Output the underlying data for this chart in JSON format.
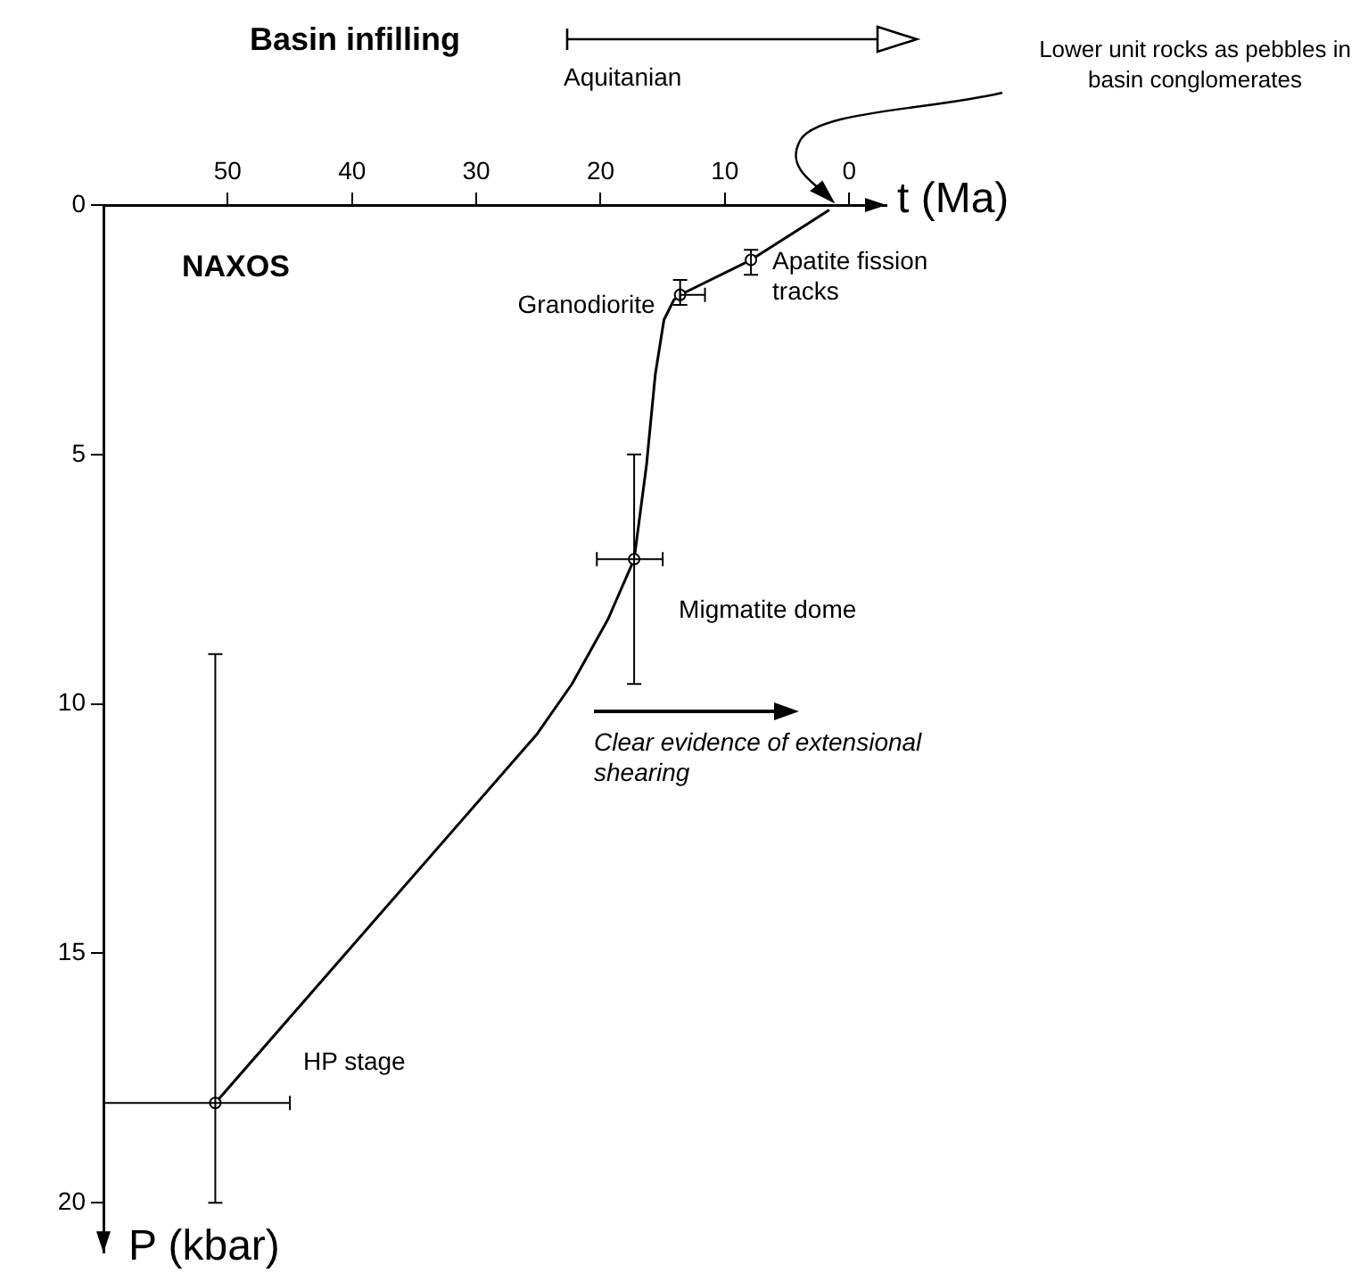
{
  "chart_data": {
    "type": "line",
    "xlabel": "t (Ma)",
    "ylabel": "P (kbar)",
    "xlim": [
      60,
      -3
    ],
    "ylim": [
      21,
      0
    ],
    "xticks": [
      50,
      40,
      30,
      20,
      10,
      0
    ],
    "yticks": [
      0,
      5,
      10,
      15,
      20
    ],
    "grid": false,
    "legend": false,
    "series": [
      {
        "color": "#000000",
        "marker": "none",
        "x": [
          51,
          25.1,
          22.3,
          19.4,
          17.3,
          16.3,
          15.6,
          14.9,
          14.1,
          13.6,
          7.9,
          1.6
        ],
        "values": [
          18,
          10.6,
          9.6,
          8.3,
          7.1,
          5.2,
          3.4,
          2.3,
          1.9,
          1.8,
          1.1,
          0.1
        ]
      },
      {
        "type": "scatter",
        "color": "#000000",
        "marker": "circle",
        "x": [
          51,
          17.3,
          13.6,
          7.9
        ],
        "values": [
          18,
          7.1,
          1.8,
          1.1
        ],
        "errors": [
          [
            9,
            20
          ],
          [
            5,
            9.6
          ],
          [
            1.5,
            2
          ],
          [
            0.9,
            1.4
          ]
        ],
        "xerrors": [
          [
            45,
            60
          ],
          [
            15,
            20.3
          ],
          [
            11.6,
            13.6
          ],
          null
        ]
      }
    ],
    "annotations": [
      "Basin infilling",
      "Aquitanian",
      "Lower unit rocks as pebbles in basin conglomerates",
      "NAXOS",
      {
        "text": "Granodiorite",
        "x": 13.6,
        "y": 1.8
      },
      {
        "text": "Apatite fission tracks",
        "x": 7.9,
        "y": 1.1
      },
      {
        "text": "Migmatite dome",
        "x": 17.3,
        "y": 7.1
      },
      "HP stage",
      "Clear evidence of extensional shearing"
    ]
  }
}
